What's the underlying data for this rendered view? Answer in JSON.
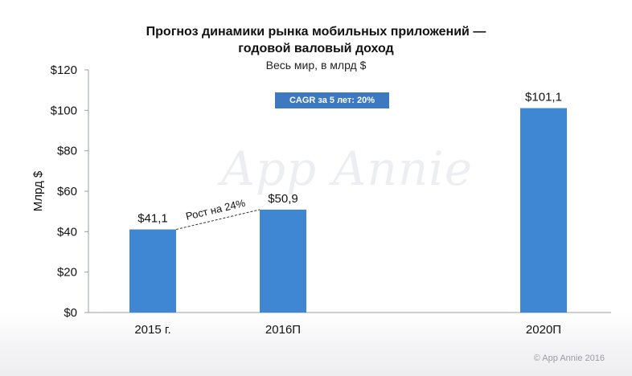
{
  "header": {
    "title_line1": "Прогноз динамики рынка мобильных приложений —",
    "title_line2": "годовой валовый доход",
    "subtitle": "Весь мир, в млрд $"
  },
  "watermark": "App Annie",
  "copyright": "© App Annie 2016",
  "colors": {
    "bar": "#3f86d3",
    "badge": "#3d79c0"
  },
  "chart_data": {
    "type": "bar",
    "categories": [
      "2015 г.",
      "2016П",
      "2020П"
    ],
    "values": [
      41.1,
      50.9,
      101.1
    ],
    "value_labels": [
      "$41,1",
      "$50,9",
      "$101,1"
    ],
    "ylabel": "Млрд $",
    "ylim": [
      0,
      120
    ],
    "yticks": [
      0,
      20,
      40,
      60,
      80,
      100,
      120
    ],
    "ytick_labels": [
      "$0",
      "$20",
      "$40",
      "$60",
      "$80",
      "$100",
      "$120"
    ],
    "grid": false,
    "annotations": {
      "growth": "Рост на 24%",
      "cagr": "CAGR за 5 лет: 20%"
    }
  }
}
